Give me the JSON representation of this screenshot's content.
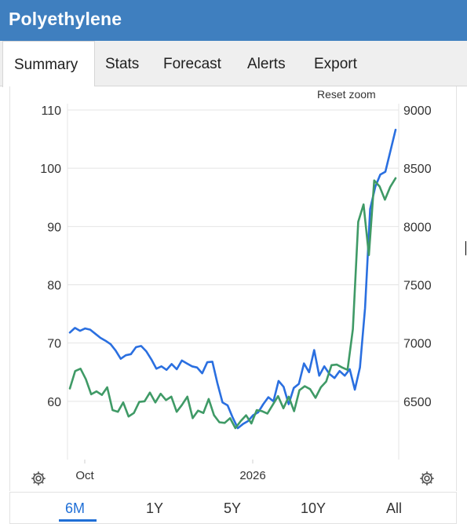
{
  "header": {
    "title": "Polyethylene"
  },
  "tabs": [
    {
      "label": "Summary",
      "active": true
    },
    {
      "label": "Stats",
      "active": false
    },
    {
      "label": "Forecast",
      "active": false
    },
    {
      "label": "Alerts",
      "active": false
    },
    {
      "label": "Export",
      "active": false
    }
  ],
  "chart": {
    "reset_zoom_label": "Reset zoom"
  },
  "ranges": [
    {
      "label": "6M",
      "active": true
    },
    {
      "label": "1Y",
      "active": false
    },
    {
      "label": "5Y",
      "active": false
    },
    {
      "label": "10Y",
      "active": false
    },
    {
      "label": "All",
      "active": false
    }
  ],
  "icons": {
    "left_settings": "gear-icon",
    "right_settings": "gear-icon"
  },
  "colors": {
    "header": "#3f7fbf",
    "blue_series": "#2a6fe0",
    "green_series": "#3f9a66",
    "active_range": "#1f6fd6"
  },
  "chart_data": {
    "type": "line",
    "title": "",
    "xlabel": "",
    "ylabel": "",
    "x_ticks": [
      "Oct",
      "2026"
    ],
    "y_left": {
      "ticks": [
        60,
        70,
        80,
        90,
        100,
        110
      ],
      "range": [
        50,
        110
      ]
    },
    "y_right": {
      "ticks": [
        6500,
        7000,
        7500,
        8000,
        8500,
        9000
      ],
      "range": [
        6000,
        9000
      ]
    },
    "grid": true,
    "series": [
      {
        "axis": "left",
        "color": "#2a6fe0",
        "values": [
          71.8,
          72.6,
          72.1,
          72.5,
          72.3,
          71.6,
          70.9,
          70.4,
          69.8,
          68.7,
          67.3,
          67.9,
          68.1,
          69.3,
          69.5,
          68.6,
          67.2,
          65.6,
          66.0,
          65.4,
          66.4,
          65.5,
          67.0,
          66.5,
          66.0,
          65.8,
          64.8,
          66.7,
          66.8,
          63.1,
          59.8,
          59.3,
          57.2,
          55.4,
          56.1,
          56.6,
          57.6,
          58.1,
          59.5,
          60.7,
          60.0,
          63.5,
          62.5,
          59.5,
          62.3,
          63.0,
          66.5,
          65.0,
          68.8,
          64.4,
          66.0,
          64.7,
          64.0,
          65.2,
          64.4,
          65.5,
          62.0,
          65.8,
          76.0,
          93.0,
          96.8,
          98.9,
          99.4,
          103.0,
          106.6
        ]
      },
      {
        "axis": "left",
        "color": "#3f9a66",
        "values": [
          62.2,
          65.2,
          65.6,
          63.8,
          61.2,
          61.7,
          61.1,
          62.4,
          58.5,
          58.2,
          59.8,
          57.4,
          58.0,
          59.9,
          60.0,
          61.5,
          59.8,
          61.3,
          60.2,
          60.8,
          58.2,
          59.4,
          60.8,
          57.1,
          58.4,
          58.0,
          60.4,
          57.6,
          56.4,
          56.3,
          57.1,
          55.4,
          56.6,
          57.6,
          56.2,
          58.5,
          58.3,
          57.9,
          59.4,
          60.9,
          58.8,
          60.8,
          58.3,
          61.9,
          62.6,
          62.1,
          60.6,
          62.4,
          63.4,
          66.2,
          66.3,
          65.8,
          65.4,
          72.4,
          90.8,
          93.8,
          85.1,
          97.9,
          96.9,
          94.6,
          96.8,
          98.3
        ]
      }
    ]
  }
}
